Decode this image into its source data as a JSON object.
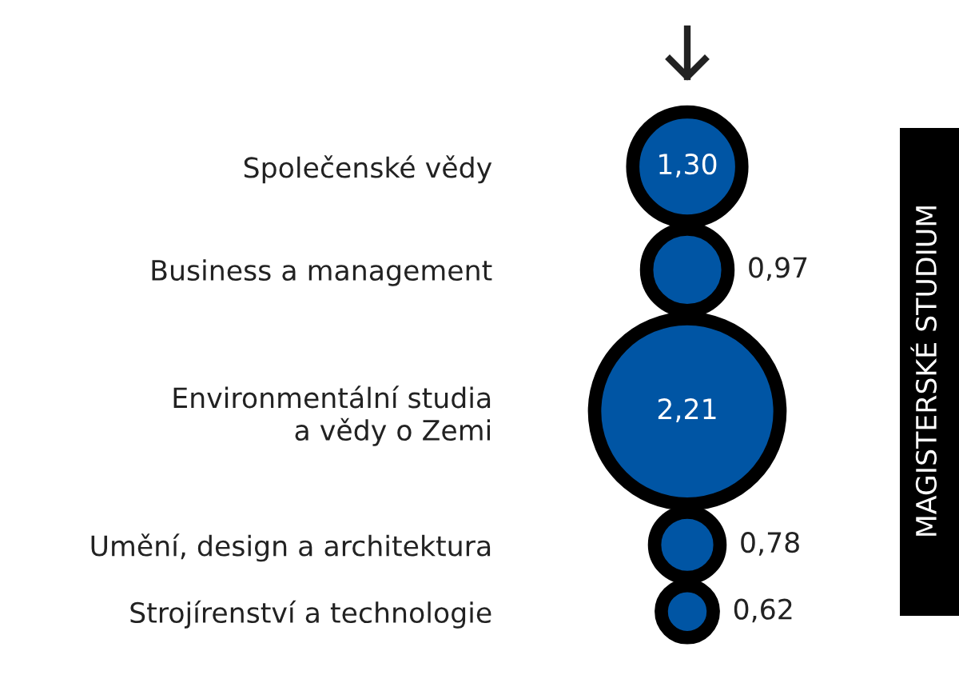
{
  "chart_data": {
    "type": "other",
    "categories": [
      "Společenské vědy",
      "Business a management",
      "Environmentální studia\na vědy o Zemi",
      "Umění, design a architektura",
      "Strojírenství a technologie"
    ],
    "values": [
      1.3,
      0.97,
      2.21,
      0.78,
      0.62
    ],
    "value_labels": [
      "1,30",
      "0,97",
      "2,21",
      "0,78",
      "0,62"
    ],
    "color": "#0055a4",
    "annotations": [
      "MAGISTERSKÉ STUDIUM"
    ]
  }
}
